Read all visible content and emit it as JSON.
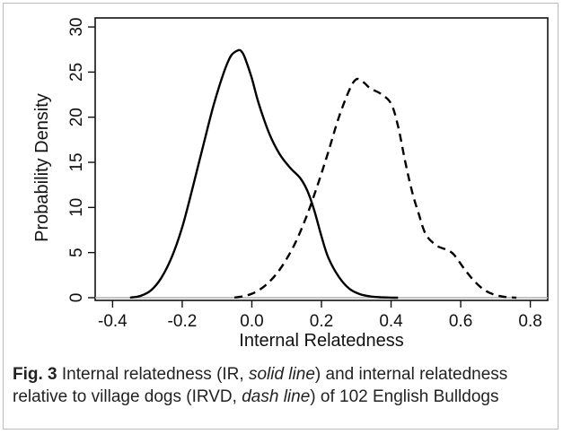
{
  "chart_data": {
    "type": "line",
    "xlabel": "Internal Relatedness",
    "ylabel": "Probability Density",
    "xlim": [
      -0.45,
      0.85
    ],
    "ylim": [
      -0.3,
      31
    ],
    "xticks": [
      -0.4,
      -0.2,
      0.0,
      0.2,
      0.4,
      0.6,
      0.8
    ],
    "xtick_labels": [
      "-0.4",
      "-0.2",
      "0.0",
      "0.2",
      "0.4",
      "0.6",
      "0.8"
    ],
    "yticks": [
      0,
      5,
      10,
      15,
      20,
      25,
      30
    ],
    "ytick_labels": [
      "0",
      "5",
      "10",
      "15",
      "20",
      "25",
      "30"
    ],
    "baseline": {
      "y": 0,
      "color": "#b0b0b0"
    },
    "series": [
      {
        "style": "solid",
        "color": "#000000",
        "x": [
          -0.35,
          -0.32,
          -0.29,
          -0.26,
          -0.23,
          -0.2,
          -0.17,
          -0.14,
          -0.11,
          -0.08,
          -0.06,
          -0.04,
          -0.03,
          -0.02,
          0.0,
          0.02,
          0.05,
          0.08,
          0.11,
          0.14,
          0.16,
          0.18,
          0.2,
          0.22,
          0.25,
          0.28,
          0.31,
          0.34,
          0.37,
          0.4,
          0.42
        ],
        "y": [
          0,
          0.2,
          0.8,
          2.2,
          4.5,
          7.8,
          12.2,
          16.8,
          21.3,
          25.0,
          26.8,
          27.4,
          27.3,
          26.6,
          24.3,
          21.5,
          18.2,
          15.9,
          14.4,
          13.2,
          11.8,
          9.6,
          6.8,
          4.4,
          2.3,
          1.0,
          0.4,
          0.15,
          0.05,
          0.01,
          0
        ]
      },
      {
        "style": "dashed",
        "color": "#000000",
        "x": [
          -0.05,
          -0.02,
          0.01,
          0.04,
          0.07,
          0.1,
          0.13,
          0.16,
          0.19,
          0.22,
          0.25,
          0.28,
          0.3,
          0.32,
          0.34,
          0.37,
          0.4,
          0.42,
          0.44,
          0.46,
          0.48,
          0.5,
          0.53,
          0.56,
          0.58,
          0.61,
          0.64,
          0.67,
          0.7,
          0.73,
          0.76
        ],
        "y": [
          0,
          0.2,
          0.6,
          1.4,
          2.6,
          4.3,
          6.5,
          9.3,
          12.6,
          16.2,
          20.0,
          23.0,
          24.2,
          23.9,
          23.2,
          22.6,
          21.5,
          19.0,
          15.2,
          11.8,
          9.2,
          7.0,
          5.8,
          5.3,
          4.8,
          3.2,
          1.8,
          0.8,
          0.3,
          0.08,
          0
        ]
      }
    ]
  },
  "caption": {
    "label": "Fig. 3",
    "p1": " Internal relatedness (IR, ",
    "e1": "solid line",
    "p2": ") and internal relatedness relative to village dogs (IRVD, ",
    "e2": "dash line",
    "p3": ") of 102 English Bulldogs"
  }
}
